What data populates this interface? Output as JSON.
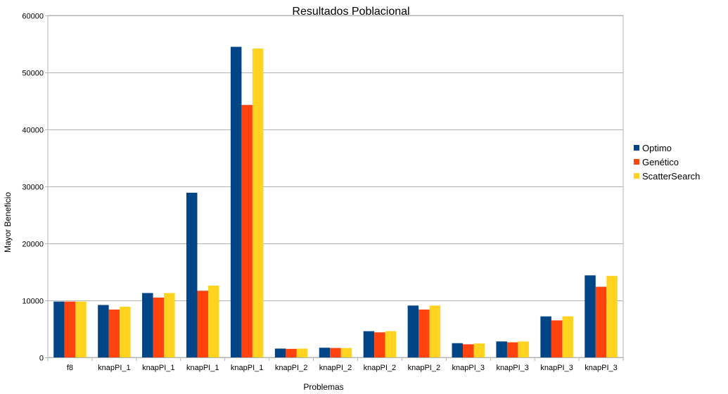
{
  "chart_data": {
    "type": "bar",
    "title": "Resultados Poblacional",
    "xlabel": "Problemas",
    "ylabel": "Mayor Beneficio",
    "ylim": [
      0,
      60000
    ],
    "yticks": [
      "0",
      "10000",
      "20000",
      "30000",
      "40000",
      "50000",
      "60000"
    ],
    "grid": true,
    "legend_position": "right",
    "categories": [
      "f8",
      "knapPI_1",
      "knapPI_1",
      "knapPI_1",
      "knapPI_1",
      "knapPI_2",
      "knapPI_2",
      "knapPI_2",
      "knapPI_2",
      "knapPI_3",
      "knapPI_3",
      "knapPI_3",
      "knapPI_3"
    ],
    "series": [
      {
        "name": "Optimo",
        "color": "#004586",
        "values": [
          9800,
          9200,
          11300,
          28900,
          54500,
          1550,
          1700,
          4600,
          9100,
          2500,
          2800,
          7200,
          14400
        ]
      },
      {
        "name": "Genético",
        "color": "#ff420e",
        "values": [
          9800,
          8400,
          10500,
          11700,
          44300,
          1500,
          1650,
          4400,
          8400,
          2300,
          2650,
          6500,
          12400
        ]
      },
      {
        "name": "ScatterSearch",
        "color": "#ffd320",
        "values": [
          9800,
          8900,
          11300,
          12600,
          54200,
          1550,
          1650,
          4600,
          9100,
          2450,
          2800,
          7200,
          14300
        ]
      }
    ]
  }
}
